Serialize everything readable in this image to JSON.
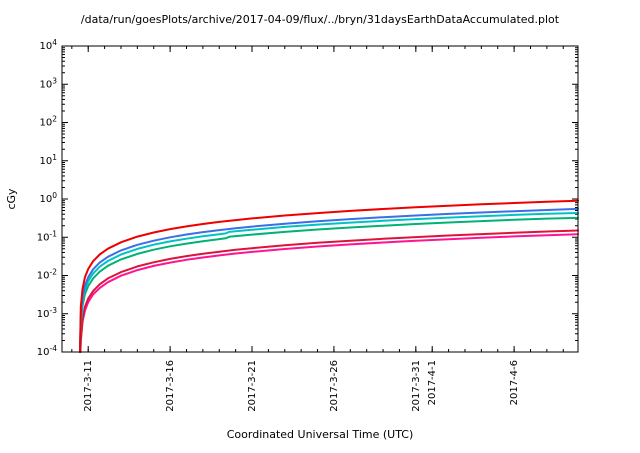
{
  "chart_data": {
    "type": "line",
    "title": "/data/run/goesPlots/archive/2017-04-09/flux/../bryn/31daysEarthDataAccumulated.plot",
    "xlabel": "Coordinated Universal Time (UTC)",
    "ylabel": "cGy",
    "y_scale": "log",
    "ylim": [
      0.0001,
      10000.0
    ],
    "y_tick_exponents": [
      4,
      3,
      2,
      1,
      0,
      -1,
      -2,
      -3,
      -4
    ],
    "x_domain_days": [
      8.4,
      39.9
    ],
    "x_minor_tick_interval_days": 1,
    "grid": false,
    "legend": "none",
    "x_ticks": [
      {
        "t": 10,
        "label": "2017-3-11"
      },
      {
        "t": 15,
        "label": "2017-3-16"
      },
      {
        "t": 20,
        "label": "2017-3-21"
      },
      {
        "t": 25,
        "label": "2017-3-26"
      },
      {
        "t": 30,
        "label": "2017-3-31"
      },
      {
        "t": 31,
        "label": "2017-4-1"
      },
      {
        "t": 36,
        "label": "2017-4-6"
      }
    ],
    "series": [
      {
        "name": "red",
        "color": "#ee0000",
        "points": [
          [
            9.5,
            0.0001
          ],
          [
            9.55,
            0.0015
          ],
          [
            9.65,
            0.0044
          ],
          [
            9.8,
            0.0089
          ],
          [
            10,
            0.0148
          ],
          [
            10.3,
            0.0237
          ],
          [
            10.7,
            0.0355
          ],
          [
            11.2,
            0.0503
          ],
          [
            12,
            0.074
          ],
          [
            13,
            0.104
          ],
          [
            14,
            0.133
          ],
          [
            15,
            0.163
          ],
          [
            16,
            0.192
          ],
          [
            17,
            0.222
          ],
          [
            18,
            0.252
          ],
          [
            19,
            0.281
          ],
          [
            20,
            0.311
          ],
          [
            22,
            0.37
          ],
          [
            24,
            0.429
          ],
          [
            26,
            0.489
          ],
          [
            28,
            0.548
          ],
          [
            30,
            0.607
          ],
          [
            32,
            0.666
          ],
          [
            34,
            0.725
          ],
          [
            36,
            0.784
          ],
          [
            38,
            0.844
          ],
          [
            39.9,
            0.9
          ]
        ]
      },
      {
        "name": "blue",
        "color": "#3a6fe8",
        "points": [
          [
            9.5,
            0.0001
          ],
          [
            9.55,
            0.0009
          ],
          [
            9.65,
            0.0027
          ],
          [
            9.8,
            0.0054
          ],
          [
            10,
            0.009
          ],
          [
            10.3,
            0.0145
          ],
          [
            10.7,
            0.0217
          ],
          [
            11.2,
            0.0308
          ],
          [
            12,
            0.0452
          ],
          [
            13,
            0.0633
          ],
          [
            14,
            0.0814
          ],
          [
            15,
            0.0995
          ],
          [
            16,
            0.118
          ],
          [
            17,
            0.136
          ],
          [
            18,
            0.154
          ],
          [
            19,
            0.172
          ],
          [
            20,
            0.19
          ],
          [
            22,
            0.226
          ],
          [
            24,
            0.262
          ],
          [
            26,
            0.298
          ],
          [
            28,
            0.335
          ],
          [
            30,
            0.371
          ],
          [
            32,
            0.407
          ],
          [
            34,
            0.443
          ],
          [
            36,
            0.479
          ],
          [
            38,
            0.516
          ],
          [
            39.9,
            0.55
          ]
        ]
      },
      {
        "name": "cyan",
        "color": "#00c2c2",
        "points": [
          [
            9.5,
            0.0001
          ],
          [
            9.55,
            0.0007
          ],
          [
            9.65,
            0.0021
          ],
          [
            9.8,
            0.0042
          ],
          [
            10,
            0.0071
          ],
          [
            10.3,
            0.0113
          ],
          [
            10.7,
            0.017
          ],
          [
            11.2,
            0.024
          ],
          [
            12,
            0.0354
          ],
          [
            13,
            0.0495
          ],
          [
            14,
            0.0637
          ],
          [
            15,
            0.0778
          ],
          [
            16,
            0.0919
          ],
          [
            17,
            0.106
          ],
          [
            18,
            0.12
          ],
          [
            18.4,
            0.126
          ],
          [
            18.6,
            0.138
          ],
          [
            19,
            0.143
          ],
          [
            20,
            0.157
          ],
          [
            22,
            0.186
          ],
          [
            24,
            0.214
          ],
          [
            26,
            0.242
          ],
          [
            28,
            0.27
          ],
          [
            30,
            0.299
          ],
          [
            32,
            0.327
          ],
          [
            34,
            0.355
          ],
          [
            36,
            0.384
          ],
          [
            38,
            0.412
          ],
          [
            39.9,
            0.43
          ]
        ]
      },
      {
        "name": "green",
        "color": "#00b273",
        "points": [
          [
            9.5,
            0.0001
          ],
          [
            9.55,
            0.0005
          ],
          [
            9.65,
            0.0016
          ],
          [
            9.8,
            0.0032
          ],
          [
            10,
            0.0053
          ],
          [
            10.3,
            0.0084
          ],
          [
            10.7,
            0.0126
          ],
          [
            11.2,
            0.0179
          ],
          [
            12,
            0.0263
          ],
          [
            13,
            0.0368
          ],
          [
            14,
            0.0474
          ],
          [
            15,
            0.0579
          ],
          [
            16,
            0.0684
          ],
          [
            17,
            0.0789
          ],
          [
            18,
            0.0895
          ],
          [
            18.4,
            0.0937
          ],
          [
            18.6,
            0.103
          ],
          [
            19,
            0.107
          ],
          [
            20,
            0.117
          ],
          [
            22,
            0.138
          ],
          [
            24,
            0.159
          ],
          [
            26,
            0.18
          ],
          [
            28,
            0.201
          ],
          [
            30,
            0.222
          ],
          [
            32,
            0.243
          ],
          [
            34,
            0.264
          ],
          [
            36,
            0.286
          ],
          [
            38,
            0.307
          ],
          [
            39.9,
            0.32
          ]
        ]
      },
      {
        "name": "crimson",
        "color": "#dc143c",
        "points": [
          [
            9.52,
            0.0001
          ],
          [
            9.55,
            0.0002
          ],
          [
            9.65,
            0.0007
          ],
          [
            9.8,
            0.0015
          ],
          [
            10,
            0.0025
          ],
          [
            10.3,
            0.0039
          ],
          [
            10.7,
            0.0059
          ],
          [
            11.2,
            0.0084
          ],
          [
            12,
            0.0123
          ],
          [
            13,
            0.0173
          ],
          [
            14,
            0.0222
          ],
          [
            15,
            0.0271
          ],
          [
            16,
            0.0321
          ],
          [
            17,
            0.037
          ],
          [
            18,
            0.0419
          ],
          [
            19,
            0.0469
          ],
          [
            20,
            0.0518
          ],
          [
            22,
            0.0617
          ],
          [
            24,
            0.0715
          ],
          [
            26,
            0.0814
          ],
          [
            28,
            0.0913
          ],
          [
            30,
            0.101
          ],
          [
            32,
            0.111
          ],
          [
            34,
            0.121
          ],
          [
            36,
            0.131
          ],
          [
            38,
            0.141
          ],
          [
            39.9,
            0.15
          ]
        ]
      },
      {
        "name": "magenta",
        "color": "#ff1493",
        "points": [
          [
            9.53,
            0.0001
          ],
          [
            9.55,
            0.0002
          ],
          [
            9.65,
            0.0006
          ],
          [
            9.8,
            0.0012
          ],
          [
            10,
            0.002
          ],
          [
            10.3,
            0.0032
          ],
          [
            10.7,
            0.0047
          ],
          [
            11.2,
            0.0067
          ],
          [
            12,
            0.0099
          ],
          [
            13,
            0.0138
          ],
          [
            14,
            0.0178
          ],
          [
            15,
            0.0217
          ],
          [
            16,
            0.0257
          ],
          [
            17,
            0.0296
          ],
          [
            18,
            0.0336
          ],
          [
            19,
            0.0375
          ],
          [
            20,
            0.0414
          ],
          [
            22,
            0.0493
          ],
          [
            24,
            0.0572
          ],
          [
            26,
            0.0651
          ],
          [
            28,
            0.073
          ],
          [
            30,
            0.0809
          ],
          [
            32,
            0.0888
          ],
          [
            34,
            0.0967
          ],
          [
            36,
            0.105
          ],
          [
            38,
            0.113
          ],
          [
            39.9,
            0.12
          ]
        ]
      }
    ]
  }
}
